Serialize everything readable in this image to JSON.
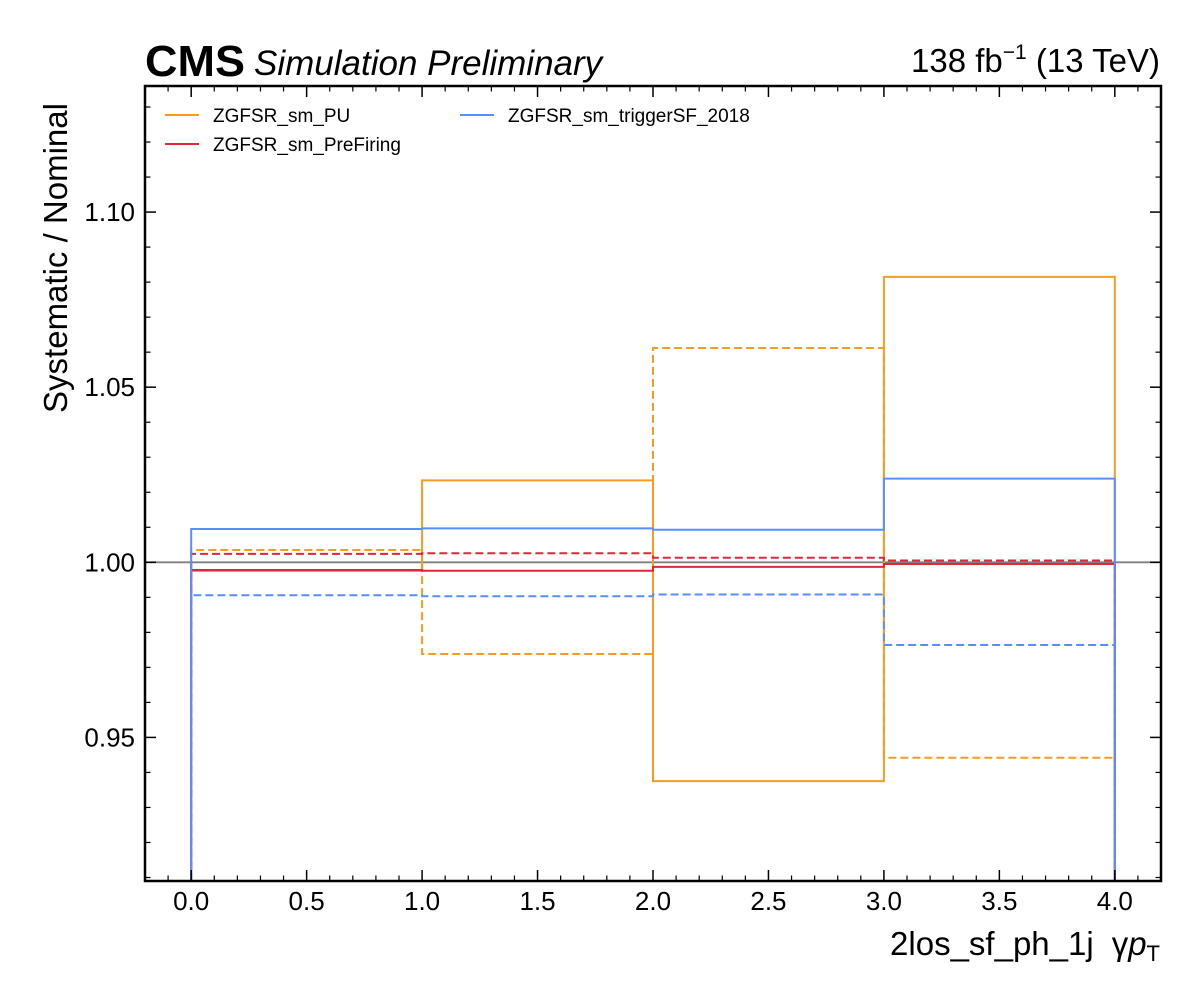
{
  "header": {
    "cms": "CMS",
    "label": "Simulation Preliminary",
    "lumi_value": "138 fb",
    "lumi_exp": "−1",
    "lumi_energy": " (13 TeV)"
  },
  "axes": {
    "ylabel": "Systematic / Nominal",
    "xlabel_text": "2los_sf_ph_1j",
    "xlabel_gamma": "γ",
    "xlabel_p": "p",
    "xlabel_sub": "T"
  },
  "colors": {
    "pu": "#f89c20",
    "prefiring": "#e42536",
    "trigger": "#5790fc",
    "reference": "#808080"
  },
  "chart_data": {
    "type": "step",
    "bin_edges": [
      0,
      1,
      2,
      3,
      4
    ],
    "xlim": [
      -0.2,
      4.2
    ],
    "ylim": [
      0.909,
      1.136
    ],
    "x_ticks": [
      "0.0",
      "0.5",
      "1.0",
      "1.5",
      "2.0",
      "2.5",
      "3.0",
      "3.5",
      "4.0"
    ],
    "x_tick_values": [
      0,
      0.5,
      1,
      1.5,
      2,
      2.5,
      3,
      3.5,
      4
    ],
    "y_ticks": [
      "0.95",
      "1.00",
      "1.05",
      "1.10"
    ],
    "y_tick_values": [
      0.95,
      1.0,
      1.05,
      1.1
    ],
    "reference_line": 1.0,
    "grid": false,
    "legend_placement": "top-left",
    "series": [
      {
        "name": "ZGFSR_sm_PU",
        "color_key": "pu",
        "variation": "up",
        "style": "solid",
        "values": [
          0.9975,
          1.0234,
          0.9375,
          1.0815
        ]
      },
      {
        "name": "ZGFSR_sm_PU",
        "color_key": "pu",
        "variation": "down",
        "style": "dashed",
        "values": [
          1.0035,
          0.9738,
          1.0612,
          0.9442
        ]
      },
      {
        "name": "ZGFSR_sm_PreFiring",
        "color_key": "prefiring",
        "variation": "up",
        "style": "solid",
        "values": [
          0.9978,
          0.9976,
          0.9987,
          0.9995
        ]
      },
      {
        "name": "ZGFSR_sm_PreFiring",
        "color_key": "prefiring",
        "variation": "down",
        "style": "dashed",
        "values": [
          1.0024,
          1.0026,
          1.0013,
          1.0005
        ]
      },
      {
        "name": "ZGFSR_sm_triggerSF_2018",
        "color_key": "trigger",
        "variation": "up",
        "style": "solid",
        "values": [
          1.0095,
          1.0097,
          1.0093,
          1.0239
        ]
      },
      {
        "name": "ZGFSR_sm_triggerSF_2018",
        "color_key": "trigger",
        "variation": "down",
        "style": "dashed",
        "values": [
          0.9906,
          0.9903,
          0.9908,
          0.9764
        ]
      }
    ],
    "legend": [
      {
        "label": "ZGFSR_sm_PU",
        "color_key": "pu"
      },
      {
        "label": "ZGFSR_sm_PreFiring",
        "color_key": "prefiring"
      },
      {
        "label": "ZGFSR_sm_triggerSF_2018",
        "color_key": "trigger"
      }
    ]
  }
}
